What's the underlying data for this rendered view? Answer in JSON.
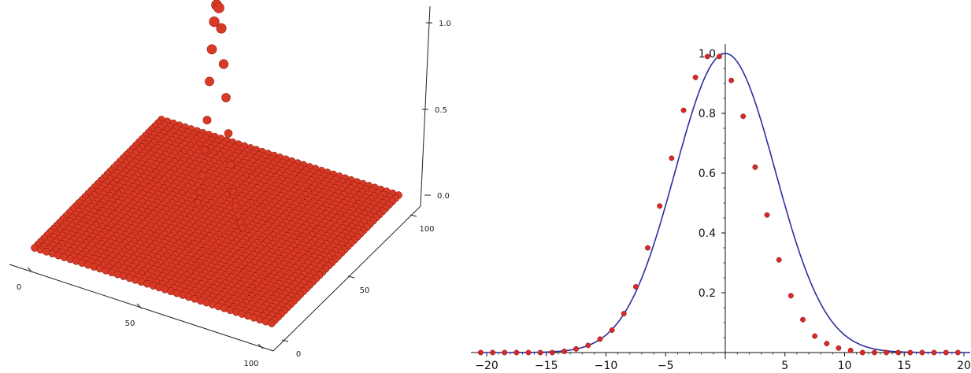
{
  "chart_data": [
    {
      "type": "scatter",
      "projection": "3d",
      "title": "",
      "xlabel": "",
      "ylabel": "",
      "zlabel": "",
      "xlim": [
        0,
        100
      ],
      "ylim": [
        0,
        100
      ],
      "zlim": [
        0,
        1
      ],
      "x_ticks": [
        "0",
        "50",
        "100"
      ],
      "y_ticks": [
        "0",
        "50",
        "100"
      ],
      "z_ticks": [
        "0.0",
        "0.5",
        "1.0"
      ],
      "grid": false,
      "plane": {
        "value": 0,
        "x_range": [
          0,
          100
        ],
        "y_range": [
          0,
          100
        ]
      },
      "series": [
        {
          "color": "#d93a26",
          "points": [
            {
              "x": 50,
              "y": 50,
              "z": 0.99
            },
            {
              "x": 51,
              "y": 50,
              "z": 0.98
            },
            {
              "x": 49,
              "y": 50,
              "z": 0.91
            },
            {
              "x": 52,
              "y": 50,
              "z": 0.89
            },
            {
              "x": 48,
              "y": 50,
              "z": 0.78
            },
            {
              "x": 53,
              "y": 50,
              "z": 0.73
            },
            {
              "x": 47,
              "y": 50,
              "z": 0.63
            },
            {
              "x": 54,
              "y": 50,
              "z": 0.58
            },
            {
              "x": 46,
              "y": 50,
              "z": 0.45
            },
            {
              "x": 55,
              "y": 50,
              "z": 0.42
            },
            {
              "x": 45,
              "y": 50,
              "z": 0.31
            },
            {
              "x": 56,
              "y": 50,
              "z": 0.28
            },
            {
              "x": 44,
              "y": 50,
              "z": 0.19
            },
            {
              "x": 57,
              "y": 50,
              "z": 0.16
            },
            {
              "x": 43,
              "y": 50,
              "z": 0.11
            },
            {
              "x": 58,
              "y": 50,
              "z": 0.1
            },
            {
              "x": 42,
              "y": 50,
              "z": 0.06
            },
            {
              "x": 59,
              "y": 50,
              "z": 0.06
            },
            {
              "x": 60,
              "y": 50,
              "z": 0.03
            },
            {
              "x": 61,
              "y": 50,
              "z": 0.01
            }
          ]
        }
      ]
    },
    {
      "type": "scatter",
      "title": "",
      "xlabel": "",
      "ylabel": "",
      "xlim": [
        -20.6,
        20.6
      ],
      "ylim": [
        0,
        1.0
      ],
      "x_ticks": [
        -20,
        -15,
        -10,
        -5,
        5,
        10,
        15,
        20
      ],
      "y_ticks": [
        0.2,
        0.4,
        0.6,
        0.8,
        1.0
      ],
      "grid": false,
      "series": [
        {
          "kind": "line",
          "color": "#2a2fa0",
          "function": "exp(-x^2/(2*sigma^2))",
          "sigma": 4.2
        },
        {
          "kind": "points",
          "color": "#d42a2a",
          "x": [
            -20.5,
            -19.5,
            -18.5,
            -17.5,
            -16.5,
            -15.5,
            -14.5,
            -13.5,
            -12.5,
            -11.5,
            -10.5,
            -9.5,
            -8.5,
            -7.5,
            -6.5,
            -5.5,
            -4.5,
            -3.5,
            -2.5,
            -1.5,
            -0.5,
            0.5,
            1.5,
            2.5,
            3.5,
            4.5,
            5.5,
            6.5,
            7.5,
            8.5,
            9.5,
            10.5,
            11.5,
            12.5,
            13.5,
            14.5,
            15.5,
            16.5,
            17.5,
            18.5,
            19.5
          ],
          "y": [
            0.0,
            0.0,
            0.0,
            0.0,
            0.0,
            0.0,
            0.0,
            0.004,
            0.012,
            0.024,
            0.045,
            0.075,
            0.13,
            0.22,
            0.35,
            0.49,
            0.65,
            0.81,
            0.92,
            0.99,
            0.99,
            0.91,
            0.79,
            0.62,
            0.46,
            0.31,
            0.19,
            0.11,
            0.055,
            0.03,
            0.015,
            0.007,
            0.0,
            0.0,
            0.0,
            0.0,
            0.0,
            0.0,
            0.0,
            0.0,
            0.0
          ]
        }
      ]
    }
  ]
}
